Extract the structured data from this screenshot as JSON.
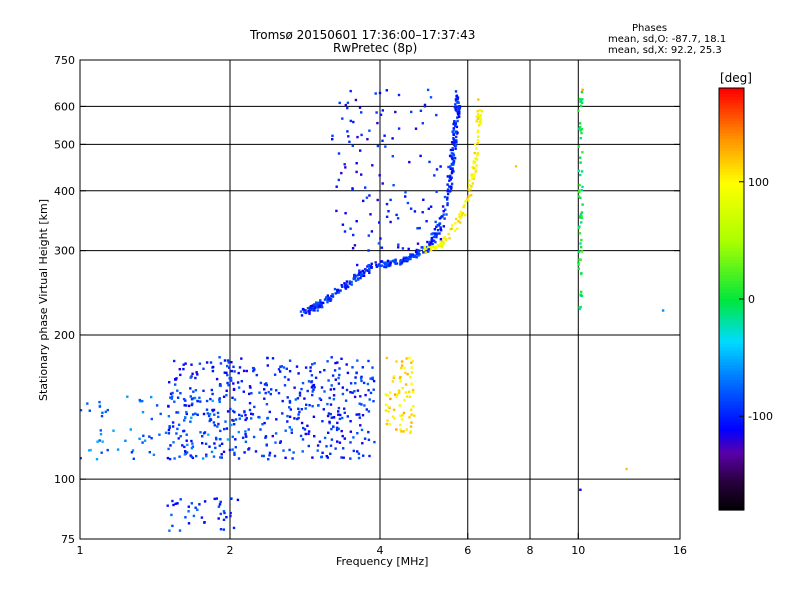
{
  "header": {
    "title_line1": "Tromsø 20150601 17:36:00–17:37:43",
    "title_line2": "RwPretec (8p)"
  },
  "stats": {
    "title": "Phases",
    "line1": "mean, sd,O:  -87.7, 18.1",
    "line2": "mean, sd,X:  92.2, 25.3"
  },
  "colorbar": {
    "label": "[deg]",
    "ticks": [
      "100",
      "0",
      "-100"
    ],
    "tick_values": [
      100,
      0,
      -100
    ],
    "range": [
      -180,
      180
    ]
  },
  "chart_data": {
    "type": "scatter",
    "xlabel": "Frequency [MHz]",
    "ylabel": "Stationary phase Virtual Height [km]",
    "x_scale": "log",
    "y_scale": "log",
    "xlim": [
      1,
      16
    ],
    "ylim": [
      75,
      750
    ],
    "x_ticks": [
      1,
      2,
      4,
      6,
      8,
      10,
      16
    ],
    "x_tick_labels": [
      "1",
      "2",
      "4",
      "6",
      "8",
      "10",
      "16"
    ],
    "y_ticks": [
      75,
      100,
      200,
      300,
      400,
      500,
      600,
      750
    ],
    "y_tick_labels": [
      "75",
      "100",
      "200",
      "300",
      "400",
      "500",
      "600",
      "750"
    ],
    "gridlines_x": [
      2,
      4,
      6,
      8,
      10
    ],
    "gridlines_y": [
      100,
      200,
      300,
      400,
      500,
      600
    ],
    "grid": true,
    "color_variable": "phase [deg]",
    "clusters": [
      {
        "name": "E-region O-mode (blue)",
        "phase": -95,
        "x_range": [
          1.5,
          3.9
        ],
        "y_range": [
          110,
          180
        ],
        "count": 480
      },
      {
        "name": "E-region low-frequency trace",
        "phase": -70,
        "x_range": [
          1.0,
          2.1
        ],
        "y_range": [
          110,
          150
        ],
        "count": 90
      },
      {
        "name": "E-region X-mode (yellow/orange)",
        "phase": 110,
        "x_range": [
          4.1,
          4.7
        ],
        "y_range": [
          125,
          180
        ],
        "count": 70
      },
      {
        "name": "F-region O-mode trace",
        "phase": -95,
        "points": [
          [
            2.8,
            222
          ],
          [
            3.0,
            230
          ],
          [
            3.3,
            248
          ],
          [
            3.6,
            265
          ],
          [
            3.9,
            280
          ],
          [
            4.2,
            282
          ],
          [
            4.6,
            290
          ],
          [
            5.0,
            305
          ],
          [
            5.3,
            340
          ],
          [
            5.5,
            400
          ],
          [
            5.6,
            480
          ],
          [
            5.7,
            560
          ],
          [
            5.75,
            640
          ]
        ],
        "count": 420
      },
      {
        "name": "F-region X-mode trace",
        "phase": 100,
        "points": [
          [
            4.9,
            300
          ],
          [
            5.3,
            310
          ],
          [
            5.7,
            340
          ],
          [
            6.0,
            380
          ],
          [
            6.2,
            450
          ],
          [
            6.3,
            530
          ],
          [
            6.35,
            600
          ]
        ],
        "count": 110
      },
      {
        "name": "Upper Es spread",
        "phase": -100,
        "x_range": [
          3.2,
          5.3
        ],
        "y_range": [
          300,
          650
        ],
        "count": 120
      },
      {
        "name": "10 MHz vertical line",
        "phase": 0,
        "x_range": [
          10.0,
          10.2
        ],
        "y_range": [
          220,
          650
        ],
        "count": 60
      },
      {
        "name": "Low echoes",
        "phase": -90,
        "x_range": [
          1.5,
          2.1
        ],
        "y_range": [
          78,
          92
        ],
        "count": 40
      }
    ],
    "points_sample": [
      {
        "x": 1.05,
        "y": 115,
        "phase": -45
      },
      {
        "x": 1.5,
        "y": 88,
        "phase": -100
      },
      {
        "x": 1.95,
        "y": 85,
        "phase": -95
      },
      {
        "x": 2.6,
        "y": 170,
        "phase": -90
      },
      {
        "x": 3.0,
        "y": 225,
        "phase": -80
      },
      {
        "x": 3.6,
        "y": 280,
        "phase": -105
      },
      {
        "x": 4.0,
        "y": 640,
        "phase": -110
      },
      {
        "x": 4.4,
        "y": 160,
        "phase": 90
      },
      {
        "x": 4.6,
        "y": 125,
        "phase": 110
      },
      {
        "x": 5.7,
        "y": 630,
        "phase": -110
      },
      {
        "x": 6.3,
        "y": 620,
        "phase": 120
      },
      {
        "x": 7.5,
        "y": 450,
        "phase": 120
      },
      {
        "x": 10.2,
        "y": 650,
        "phase": 130
      },
      {
        "x": 10.1,
        "y": 95,
        "phase": -110
      },
      {
        "x": 12.5,
        "y": 105,
        "phase": 120
      },
      {
        "x": 14.8,
        "y": 225,
        "phase": -60
      }
    ]
  }
}
